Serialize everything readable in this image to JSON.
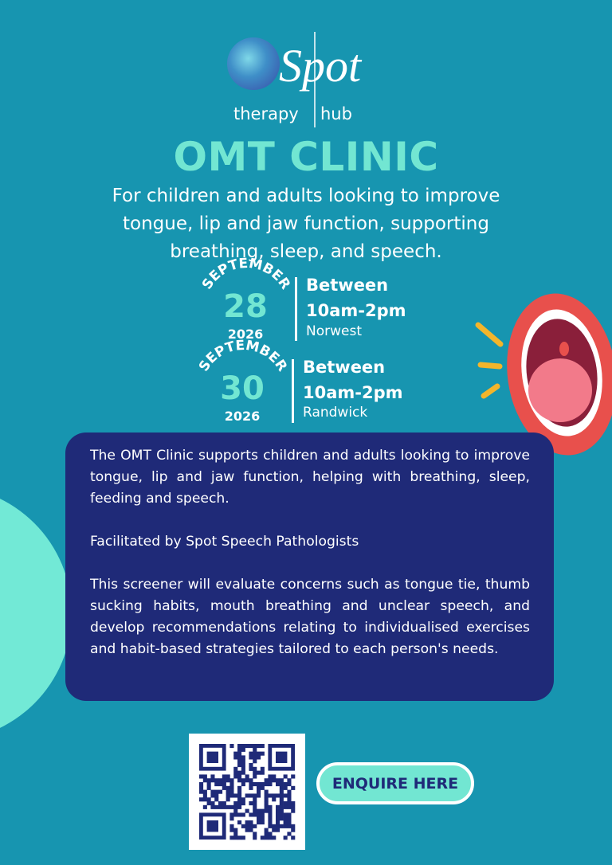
{
  "logo": {
    "name": "Spot",
    "left": "therapy",
    "right": "hub"
  },
  "title": "OMT CLINIC",
  "subtitle_lines": [
    "For children and adults looking to improve",
    "tongue, lip and jaw function, supporting",
    "breathing, sleep, and speech."
  ],
  "events": [
    {
      "month": "SEPTEMBER",
      "day": "28",
      "year": "2026",
      "label": "Between",
      "time": "10am-2pm",
      "location": "Norwest"
    },
    {
      "month": "SEPTEMBER",
      "day": "30",
      "year": "2026",
      "label": "Between",
      "time": "10am-2pm",
      "location": "Randwick"
    }
  ],
  "body": [
    "The OMT Clinic supports children and adults looking to improve tongue, lip and jaw function, helping with breathing, sleep, feeding and speech.",
    "Facilitated by Spot Speech Pathologists",
    "This screener will evaluate concerns such as tongue tie, thumb sucking habits, mouth breathing and unclear speech, and develop recommendations relating to individualised exercises and habit-based strategies tailored to each person's needs."
  ],
  "button": "ENQUIRE HERE"
}
